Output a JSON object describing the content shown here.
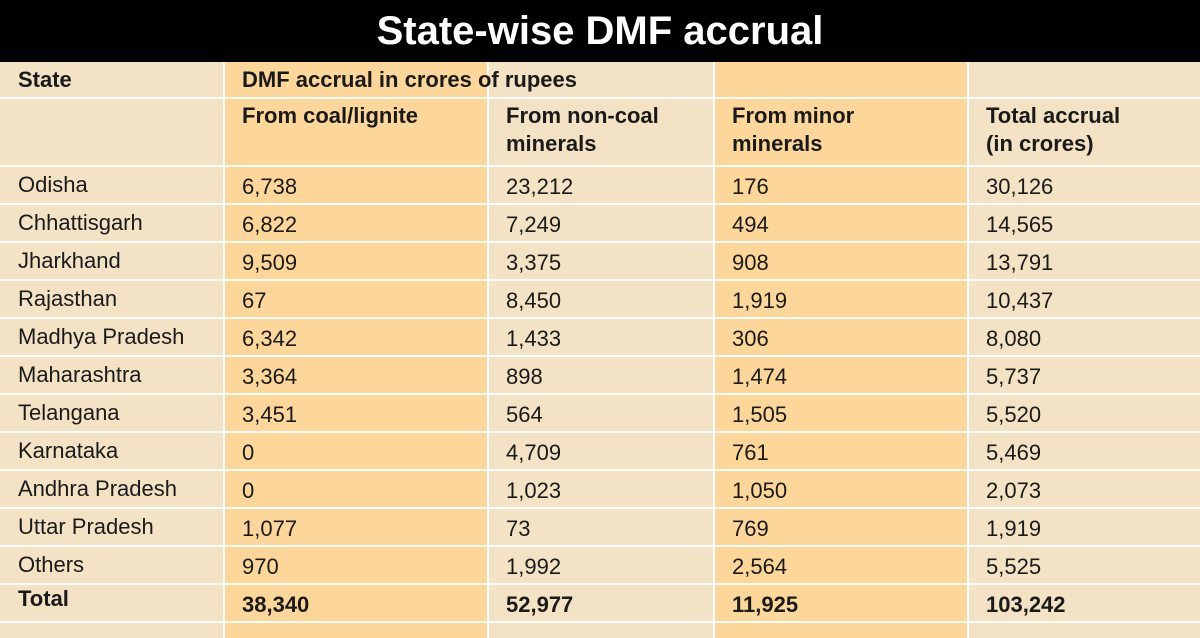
{
  "title": "State-wise DMF accrual",
  "chart_data": {
    "type": "table",
    "header_state": "State",
    "header_group": "DMF accrual in crores of rupees",
    "columns": [
      "From coal/lignite",
      "From non-coal minerals",
      "From minor minerals",
      "Total accrual (in crores)"
    ],
    "columns_display": [
      [
        "From coal/lignite"
      ],
      [
        "From non-coal",
        "minerals"
      ],
      [
        "From minor",
        "minerals"
      ],
      [
        "Total accrual",
        "(in crores)"
      ]
    ],
    "rows": [
      {
        "state": "Odisha",
        "values": [
          "6,738",
          "23,212",
          "176",
          "30,126"
        ]
      },
      {
        "state": "Chhattisgarh",
        "values": [
          "6,822",
          "7,249",
          "494",
          "14,565"
        ]
      },
      {
        "state": "Jharkhand",
        "values": [
          "9,509",
          "3,375",
          "908",
          "13,791"
        ]
      },
      {
        "state": "Rajasthan",
        "values": [
          "67",
          "8,450",
          "1,919",
          "10,437"
        ]
      },
      {
        "state": "Madhya Pradesh",
        "values": [
          "6,342",
          "1,433",
          "306",
          "8,080"
        ]
      },
      {
        "state": "Maharashtra",
        "values": [
          "3,364",
          "898",
          "1,474",
          "5,737"
        ]
      },
      {
        "state": "Telangana",
        "values": [
          "3,451",
          "564",
          "1,505",
          "5,520"
        ]
      },
      {
        "state": "Karnataka",
        "values": [
          "0",
          "4,709",
          "761",
          "5,469"
        ]
      },
      {
        "state": "Andhra Pradesh",
        "values": [
          "0",
          "1,023",
          "1,050",
          "2,073"
        ]
      },
      {
        "state": "Uttar Pradesh",
        "values": [
          "1,077",
          "73",
          "769",
          "1,919"
        ]
      },
      {
        "state": "Others",
        "values": [
          "970",
          "1,992",
          "2,564",
          "5,525"
        ]
      }
    ],
    "total": {
      "state": "Total",
      "values": [
        "38,340",
        "52,977",
        "11,925",
        "103,242"
      ]
    }
  },
  "colors": {
    "title_bg": "#000000",
    "title_fg": "#ffffff",
    "cell_bg_light": "#f3e2c4",
    "cell_bg_highlight": "#fdd79a",
    "grid": "#ffffff"
  }
}
